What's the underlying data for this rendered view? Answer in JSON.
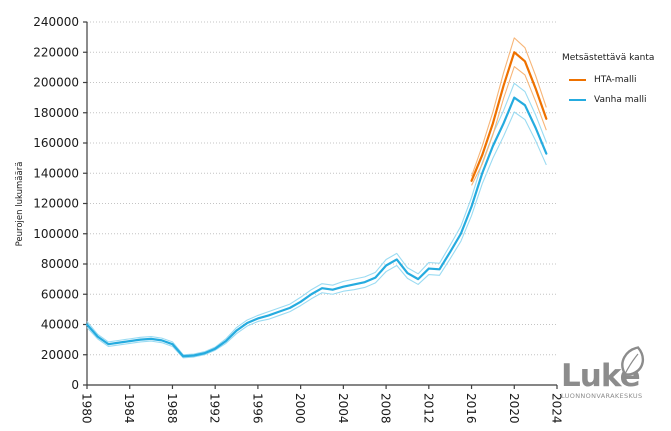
{
  "chart_data": {
    "type": "line",
    "title": "",
    "xlabel": "",
    "ylabel": "Peurojen lukumäärä",
    "xlim": [
      1980,
      2024
    ],
    "ylim": [
      0,
      240000
    ],
    "x_ticks": [
      1980,
      1984,
      1988,
      1992,
      1996,
      2000,
      2004,
      2008,
      2012,
      2016,
      2020,
      2024
    ],
    "y_ticks": [
      0,
      20000,
      40000,
      60000,
      80000,
      100000,
      120000,
      140000,
      160000,
      180000,
      200000,
      220000,
      240000
    ],
    "grid": "horizontal-dotted",
    "legend": {
      "title": "Metsästettävä kanta",
      "position": "right"
    },
    "series": [
      {
        "name": "HTA-malli",
        "color": "#ee7100",
        "ci_color": "#f7b577",
        "x": [
          2016,
          2017,
          2018,
          2019,
          2020,
          2021,
          2022,
          2023
        ],
        "values": [
          135000,
          152000,
          173000,
          198000,
          220000,
          214000,
          196000,
          176000
        ],
        "upper": [
          138000,
          158000,
          180500,
          206500,
          229500,
          223000,
          204500,
          183500
        ],
        "lower": [
          132000,
          146000,
          165500,
          189500,
          210500,
          205000,
          187500,
          168500
        ]
      },
      {
        "name": "Vanha malli",
        "color": "#25abdf",
        "ci_color": "#9bdbf2",
        "x": [
          1980,
          1981,
          1982,
          1983,
          1984,
          1985,
          1986,
          1987,
          1988,
          1989,
          1990,
          1991,
          1992,
          1993,
          1994,
          1995,
          1996,
          1997,
          1998,
          1999,
          2000,
          2001,
          2002,
          2003,
          2004,
          2005,
          2006,
          2007,
          2008,
          2009,
          2010,
          2011,
          2012,
          2013,
          2014,
          2015,
          2016,
          2017,
          2018,
          2019,
          2020,
          2021,
          2022,
          2023
        ],
        "values": [
          40000,
          32000,
          27000,
          28000,
          29000,
          30000,
          30500,
          29500,
          27000,
          19000,
          19500,
          21000,
          24000,
          29000,
          36000,
          41000,
          44000,
          46000,
          48500,
          51000,
          55000,
          60000,
          64000,
          63000,
          65000,
          66500,
          68000,
          71000,
          79000,
          83000,
          74000,
          70000,
          77000,
          76500,
          88000,
          100000,
          118000,
          140000,
          158000,
          173000,
          190000,
          185000,
          170000,
          153000
        ],
        "upper": [
          42000,
          33500,
          28500,
          29500,
          30500,
          31500,
          32000,
          31000,
          28500,
          20000,
          20500,
          22000,
          25000,
          30500,
          38000,
          43000,
          46000,
          48500,
          51000,
          53500,
          58000,
          63000,
          67000,
          66000,
          68500,
          70000,
          71500,
          74500,
          83000,
          87000,
          77500,
          73500,
          81000,
          80500,
          92500,
          105000,
          124000,
          147000,
          166000,
          181500,
          199500,
          194000,
          178500,
          160500
        ],
        "lower": [
          38000,
          30500,
          25500,
          26500,
          27500,
          28500,
          29000,
          28000,
          25500,
          18000,
          18500,
          20000,
          23000,
          27500,
          34000,
          39000,
          42000,
          43500,
          46000,
          48500,
          52500,
          57000,
          61000,
          60000,
          62000,
          63000,
          64500,
          67500,
          75000,
          79000,
          70500,
          66500,
          73000,
          72500,
          83500,
          95000,
          112000,
          133000,
          150000,
          164500,
          180500,
          175500,
          161500,
          145500
        ]
      }
    ]
  },
  "logo": {
    "text": "Luke",
    "subtext": "LUONNONVARAKESKUS"
  },
  "colors": {
    "axis": "#3f3f3f",
    "grid": "#c4c4c4",
    "tick_text": "#1a1a1a",
    "logo_gray": "#8c8c8c"
  }
}
